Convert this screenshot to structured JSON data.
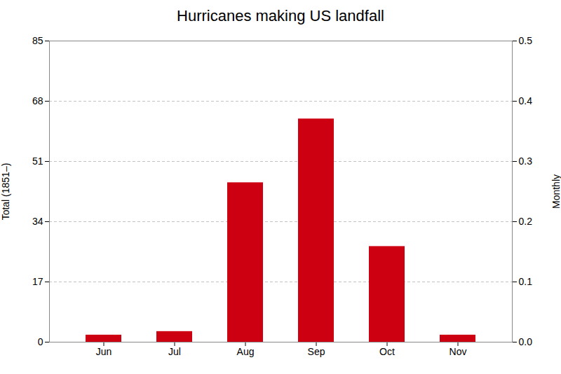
{
  "chart_data": {
    "type": "bar",
    "title": "Hurricanes making US landfall",
    "categories": [
      "Jun",
      "Jul",
      "Aug",
      "Sep",
      "Oct",
      "Nov"
    ],
    "values": [
      2,
      3,
      45,
      63,
      27,
      2
    ],
    "color": "#cc0011",
    "ylim": [
      0,
      85
    ],
    "yticks": [
      0,
      17,
      34,
      51,
      68,
      85
    ],
    "ylabel": "Total (1851–)",
    "y2lim": [
      0,
      0.5
    ],
    "y2ticks": [
      {
        "value": 0,
        "label": "0.0"
      },
      0.1,
      0.2,
      0.3,
      0.4,
      0.5
    ],
    "y2label": "Monthly",
    "grid": true
  }
}
